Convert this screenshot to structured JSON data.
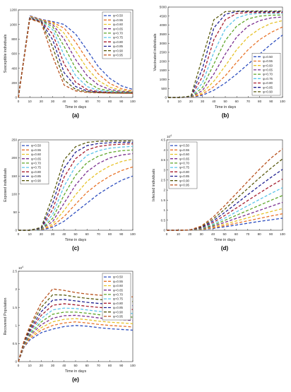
{
  "colors": [
    "#2f4fbf",
    "#e8742a",
    "#e6c229",
    "#7a2e8e",
    "#5fa62a",
    "#5bc4e8",
    "#a61e2e",
    "#1f1f8f",
    "#5a5a10",
    "#b8521e"
  ],
  "chart_data": [
    {
      "type": "line",
      "panel_label": "(a)",
      "xlabel": "Time in days",
      "ylabel": "Susceptible individuals",
      "xlim": [
        0,
        100
      ],
      "ylim": [
        0,
        1200
      ],
      "xticks": [
        0,
        10,
        20,
        30,
        40,
        50,
        60,
        70,
        80,
        90,
        100
      ],
      "yticks": [
        0,
        200,
        400,
        600,
        800,
        1000,
        1200
      ],
      "exponent": "",
      "legend_position": "top-right",
      "x": [
        0,
        10,
        20,
        30,
        40,
        50,
        60,
        70,
        80,
        90,
        100
      ],
      "series": [
        {
          "name": "φ=0.50",
          "values": [
            0,
            1120,
            1070,
            1040,
            1000,
            870,
            650,
            420,
            260,
            160,
            110
          ]
        },
        {
          "name": "φ=0.55",
          "values": [
            0,
            1115,
            1065,
            1030,
            950,
            760,
            520,
            320,
            190,
            120,
            90
          ]
        },
        {
          "name": "φ=0.60",
          "values": [
            0,
            1110,
            1060,
            1020,
            880,
            640,
            400,
            230,
            140,
            100,
            80
          ]
        },
        {
          "name": "φ=0.65",
          "values": [
            0,
            1105,
            1055,
            1000,
            800,
            520,
            300,
            170,
            110,
            85,
            75
          ]
        },
        {
          "name": "φ=0.70",
          "values": [
            0,
            1100,
            1050,
            970,
            700,
            400,
            210,
            120,
            90,
            75,
            70
          ]
        },
        {
          "name": "φ=0.75",
          "values": [
            0,
            1095,
            1045,
            930,
            580,
            300,
            150,
            95,
            80,
            70,
            65
          ]
        },
        {
          "name": "φ=0.80",
          "values": [
            0,
            1090,
            1040,
            870,
            460,
            210,
            110,
            80,
            70,
            65,
            62
          ]
        },
        {
          "name": "φ=0.85",
          "values": [
            0,
            1085,
            1035,
            790,
            340,
            150,
            90,
            72,
            65,
            62,
            60
          ]
        },
        {
          "name": "φ=0.90",
          "values": [
            0,
            1080,
            1030,
            690,
            240,
            110,
            78,
            68,
            62,
            60,
            58
          ]
        },
        {
          "name": "φ=0.95",
          "values": [
            0,
            1075,
            1025,
            560,
            170,
            90,
            70,
            64,
            60,
            58,
            56
          ]
        }
      ]
    },
    {
      "type": "line",
      "panel_label": "(b)",
      "xlabel": "Time in days",
      "ylabel": "Vaccinated individuals",
      "xlim": [
        0,
        100
      ],
      "ylim": [
        0,
        5000
      ],
      "xticks": [
        0,
        10,
        20,
        30,
        40,
        50,
        60,
        70,
        80,
        90,
        100
      ],
      "yticks": [
        0,
        500,
        1000,
        1500,
        2000,
        2500,
        3000,
        3500,
        4000,
        4500,
        5000
      ],
      "exponent": "",
      "legend_position": "bottom-right",
      "x": [
        0,
        10,
        20,
        30,
        40,
        50,
        60,
        70,
        80,
        90,
        100
      ],
      "series": [
        {
          "name": "φ=0.50",
          "values": [
            0,
            0,
            10,
            120,
            400,
            800,
            1300,
            1850,
            2400,
            2950,
            3450
          ]
        },
        {
          "name": "φ=0.55",
          "values": [
            0,
            0,
            15,
            180,
            600,
            1200,
            1950,
            2650,
            3200,
            3600,
            3900
          ]
        },
        {
          "name": "φ=0.60",
          "values": [
            0,
            0,
            20,
            260,
            900,
            1750,
            2650,
            3350,
            3800,
            4100,
            4250
          ]
        },
        {
          "name": "φ=0.65",
          "values": [
            0,
            0,
            25,
            380,
            1300,
            2400,
            3350,
            3950,
            4250,
            4400,
            4450
          ]
        },
        {
          "name": "φ=0.70",
          "values": [
            0,
            0,
            30,
            550,
            1850,
            3150,
            3950,
            4350,
            4500,
            4550,
            4560
          ]
        },
        {
          "name": "φ=0.75",
          "values": [
            0,
            0,
            40,
            800,
            2500,
            3800,
            4400,
            4600,
            4650,
            4650,
            4650
          ]
        },
        {
          "name": "φ=0.80",
          "values": [
            0,
            0,
            50,
            1150,
            3200,
            4300,
            4650,
            4700,
            4700,
            4700,
            4700
          ]
        },
        {
          "name": "φ=0.85",
          "values": [
            0,
            0,
            60,
            1600,
            3850,
            4600,
            4750,
            4750,
            4750,
            4750,
            4750
          ]
        },
        {
          "name": "φ=0.90",
          "values": [
            0,
            0,
            80,
            2200,
            4300,
            4750,
            4780,
            4780,
            4780,
            4780,
            4780
          ]
        }
      ]
    },
    {
      "type": "line",
      "panel_label": "(c)",
      "xlabel": "Time in days",
      "ylabel": "Exposed individuals",
      "xlim": [
        0,
        100
      ],
      "ylim": [
        0,
        250
      ],
      "xticks": [
        0,
        10,
        20,
        30,
        40,
        50,
        60,
        70,
        80,
        90,
        100
      ],
      "yticks": [
        0,
        50,
        100,
        150,
        200,
        250
      ],
      "exponent": "",
      "legend_position": "top-left",
      "x": [
        0,
        10,
        20,
        30,
        40,
        50,
        60,
        70,
        80,
        90,
        100
      ],
      "series": [
        {
          "name": "φ=0.50",
          "values": [
            0,
            0,
            1,
            8,
            25,
            50,
            75,
            100,
            120,
            138,
            150
          ]
        },
        {
          "name": "φ=0.55",
          "values": [
            0,
            0,
            2,
            12,
            38,
            72,
            105,
            130,
            150,
            165,
            175
          ]
        },
        {
          "name": "φ=0.60",
          "values": [
            0,
            0,
            2,
            17,
            55,
            98,
            135,
            160,
            178,
            190,
            197
          ]
        },
        {
          "name": "φ=0.65",
          "values": [
            0,
            0,
            3,
            24,
            75,
            125,
            162,
            185,
            200,
            208,
            212
          ]
        },
        {
          "name": "φ=0.70",
          "values": [
            0,
            0,
            3,
            33,
            98,
            152,
            187,
            205,
            215,
            220,
            222
          ]
        },
        {
          "name": "φ=0.75",
          "values": [
            0,
            0,
            4,
            44,
            122,
            177,
            207,
            220,
            227,
            230,
            232
          ]
        },
        {
          "name": "φ=0.80",
          "values": [
            0,
            0,
            5,
            58,
            147,
            198,
            222,
            232,
            236,
            238,
            239
          ]
        },
        {
          "name": "φ=0.85",
          "values": [
            0,
            0,
            6,
            75,
            172,
            216,
            234,
            240,
            242,
            243,
            243
          ]
        },
        {
          "name": "φ=0.90",
          "values": [
            0,
            0,
            8,
            95,
            195,
            231,
            243,
            246,
            247,
            247,
            247
          ]
        }
      ]
    },
    {
      "type": "line",
      "panel_label": "(d)",
      "xlabel": "Time in days",
      "ylabel": "Infected individuals",
      "xlim": [
        0,
        100
      ],
      "ylim": [
        0,
        45000
      ],
      "xticks": [
        0,
        10,
        20,
        30,
        40,
        50,
        60,
        70,
        80,
        90,
        100
      ],
      "yticks": [
        0,
        5000,
        10000,
        15000,
        20000,
        25000,
        30000,
        35000,
        40000,
        45000
      ],
      "ytick_labels": [
        "0",
        "0.5",
        "1",
        "1.5",
        "2",
        "2.5",
        "3",
        "3.5",
        "4",
        "4.5"
      ],
      "exponent": "10^4",
      "legend_position": "top-left",
      "x": [
        0,
        10,
        20,
        30,
        40,
        50,
        60,
        70,
        80,
        90,
        100
      ],
      "series": [
        {
          "name": "φ=0.50",
          "values": [
            0,
            0,
            50,
            300,
            900,
            1700,
            2600,
            3500,
            4400,
            5200,
            6000
          ]
        },
        {
          "name": "φ=0.55",
          "values": [
            0,
            0,
            60,
            400,
            1200,
            2300,
            3500,
            4700,
            5900,
            7100,
            8200
          ]
        },
        {
          "name": "φ=0.60",
          "values": [
            0,
            0,
            70,
            500,
            1600,
            3000,
            4600,
            6200,
            7800,
            9300,
            10800
          ]
        },
        {
          "name": "φ=0.65",
          "values": [
            0,
            0,
            80,
            650,
            2000,
            3900,
            5900,
            7900,
            9900,
            11900,
            13900
          ]
        },
        {
          "name": "φ=0.70",
          "values": [
            0,
            0,
            90,
            800,
            2500,
            4900,
            7400,
            9900,
            12400,
            14900,
            17300
          ]
        },
        {
          "name": "φ=0.75",
          "values": [
            0,
            0,
            100,
            1000,
            3100,
            6000,
            9100,
            12200,
            15300,
            18300,
            21200
          ]
        },
        {
          "name": "φ=0.80",
          "values": [
            0,
            0,
            110,
            1200,
            3800,
            7300,
            11000,
            14800,
            18500,
            22100,
            25500
          ]
        },
        {
          "name": "φ=0.85",
          "values": [
            0,
            0,
            130,
            1450,
            4600,
            8800,
            13200,
            17700,
            22100,
            26300,
            30300
          ]
        },
        {
          "name": "φ=0.90",
          "values": [
            0,
            0,
            150,
            1750,
            5500,
            10400,
            15600,
            20800,
            26000,
            30900,
            35500
          ]
        },
        {
          "name": "φ=0.95",
          "values": [
            0,
            0,
            170,
            2100,
            6500,
            12200,
            18200,
            24300,
            30300,
            35900,
            40500
          ]
        }
      ]
    },
    {
      "type": "line",
      "panel_label": "(e)",
      "xlabel": "Time in days",
      "ylabel": "Recovered Population",
      "xlim": [
        0,
        100
      ],
      "ylim": [
        0,
        25000
      ],
      "xticks": [
        0,
        10,
        20,
        30,
        40,
        50,
        60,
        70,
        80,
        90,
        100
      ],
      "yticks": [
        0,
        5000,
        10000,
        15000,
        20000,
        25000
      ],
      "ytick_labels": [
        "0",
        "0.5",
        "1",
        "1.5",
        "2",
        "2.5"
      ],
      "exponent": "10^4",
      "legend_position": "top-right",
      "x": [
        0,
        5,
        10,
        20,
        30,
        40,
        50,
        60,
        70,
        80,
        90,
        100
      ],
      "series": [
        {
          "name": "φ=0.50",
          "values": [
            0,
            4000,
            6000,
            8000,
            9000,
            9700,
            10000,
            9800,
            9400,
            9100,
            8900,
            8700
          ]
        },
        {
          "name": "φ=0.55",
          "values": [
            0,
            4200,
            6400,
            8700,
            10000,
            10700,
            11000,
            10700,
            10300,
            10000,
            9800,
            9600
          ]
        },
        {
          "name": "φ=0.60",
          "values": [
            0,
            4400,
            6800,
            9400,
            11000,
            11700,
            11900,
            11600,
            11200,
            10900,
            10700,
            10500
          ]
        },
        {
          "name": "φ=0.65",
          "values": [
            0,
            4600,
            7200,
            10200,
            12000,
            12700,
            12800,
            12500,
            12100,
            11800,
            11600,
            11400
          ]
        },
        {
          "name": "φ=0.70",
          "values": [
            0,
            4800,
            7600,
            11000,
            13100,
            13700,
            13700,
            13400,
            13000,
            12700,
            12500,
            12300
          ]
        },
        {
          "name": "φ=0.75",
          "values": [
            0,
            5000,
            8000,
            11900,
            14300,
            14800,
            14700,
            14300,
            13900,
            13700,
            13500,
            13300
          ]
        },
        {
          "name": "φ=0.80",
          "values": [
            0,
            5200,
            8400,
            12800,
            15600,
            16000,
            15700,
            15300,
            15000,
            14800,
            14600,
            14400
          ]
        },
        {
          "name": "φ=0.85",
          "values": [
            0,
            5400,
            8800,
            13800,
            17000,
            17200,
            16800,
            16400,
            16100,
            15900,
            15700,
            15500
          ]
        },
        {
          "name": "φ=0.90",
          "values": [
            0,
            5600,
            9300,
            15000,
            18500,
            18400,
            17900,
            17500,
            17200,
            17000,
            16800,
            16600
          ]
        },
        {
          "name": "φ=0.95",
          "values": [
            0,
            5800,
            9800,
            16300,
            20100,
            19700,
            19100,
            18700,
            18400,
            18200,
            18000,
            17900
          ]
        }
      ]
    }
  ]
}
